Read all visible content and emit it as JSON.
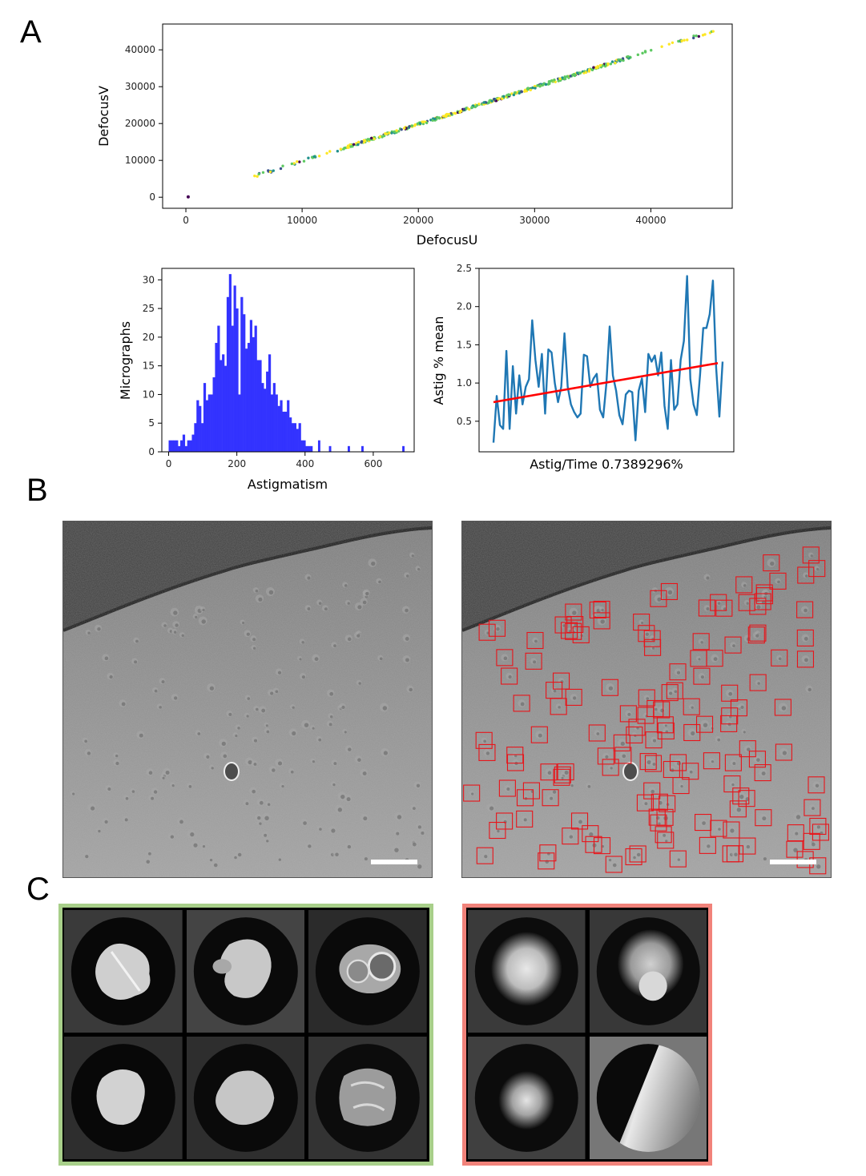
{
  "panels": {
    "a": "A",
    "b": "B",
    "c": "C"
  },
  "chart_data": [
    {
      "type": "scatter",
      "xlabel": "DefocusU",
      "ylabel": "DefocusV",
      "xlim": [
        -2000,
        47000
      ],
      "ylim": [
        -3000,
        47000
      ],
      "xticks": [
        0,
        10000,
        20000,
        30000,
        40000
      ],
      "yticks": [
        0,
        10000,
        20000,
        30000,
        40000
      ],
      "xtick_labels": [
        "0",
        "10000",
        "20000",
        "30000",
        "40000"
      ],
      "ytick_labels": [
        "0",
        "10000",
        "20000",
        "30000",
        "40000"
      ],
      "colormap": [
        "#440154",
        "#3b528b",
        "#21918c",
        "#5ec962",
        "#fde725"
      ],
      "points_range": {
        "x": [
          5200,
          45500
        ],
        "y": [
          5000,
          45300
        ]
      },
      "outlier": {
        "x": 200,
        "y": 100
      }
    },
    {
      "type": "bar",
      "xlabel": "Astigmatism",
      "ylabel": "Micrographs",
      "xlim": [
        -20,
        720
      ],
      "ylim": [
        0,
        32
      ],
      "xticks": [
        0,
        200,
        400,
        600
      ],
      "yticks": [
        0,
        5,
        10,
        15,
        20,
        25,
        30
      ],
      "xtick_labels": [
        "0",
        "200",
        "400",
        "600"
      ],
      "ytick_labels": [
        "0",
        "5",
        "10",
        "15",
        "20",
        "25",
        "30"
      ],
      "color": "#3333ff",
      "bin_width": 6.8,
      "bin_start": 0,
      "values": [
        2,
        2,
        2,
        2,
        1,
        2,
        3,
        1,
        2,
        2,
        3,
        5,
        9,
        8,
        5,
        12,
        9,
        10,
        10,
        13,
        19,
        22,
        16,
        17,
        15,
        27,
        31,
        22,
        29,
        25,
        10,
        27,
        24,
        18,
        19,
        23,
        20,
        22,
        16,
        16,
        12,
        11,
        14,
        17,
        10,
        12,
        10,
        8,
        9,
        7,
        7,
        9,
        6,
        5,
        5,
        4,
        5,
        2,
        2,
        1,
        1,
        1,
        0,
        0,
        0,
        0,
        0,
        0,
        0,
        0,
        0,
        0,
        0,
        0,
        0,
        0,
        0,
        0,
        0,
        0,
        0,
        0,
        0,
        0,
        0,
        0,
        0,
        0,
        0,
        0,
        0,
        0,
        0,
        0,
        0,
        0,
        0,
        0,
        0,
        0
      ],
      "outliers": [
        {
          "x": 438,
          "v": 2
        },
        {
          "x": 470,
          "v": 1
        },
        {
          "x": 525,
          "v": 1
        },
        {
          "x": 565,
          "v": 1
        },
        {
          "x": 685,
          "v": 1
        }
      ]
    },
    {
      "type": "line",
      "xlabel": "Astig/Time 0.7389296%",
      "ylabel": "Astig % mean",
      "ylim": [
        0.1,
        2.5
      ],
      "yticks": [
        0.5,
        1.0,
        1.5,
        2.0,
        2.5
      ],
      "ytick_labels": [
        "0.5",
        "1.0",
        "1.5",
        "2.0",
        "2.5"
      ],
      "series": [
        {
          "values": [
            0.22,
            0.83,
            0.45,
            0.4,
            1.42,
            0.4,
            1.22,
            0.6,
            1.1,
            0.72,
            0.95,
            1.05,
            1.82,
            1.3,
            0.95,
            1.38,
            0.6,
            1.44,
            1.4,
            1.0,
            0.75,
            0.95,
            1.65,
            0.95,
            0.72,
            0.62,
            0.55,
            0.6,
            1.37,
            1.35,
            0.95,
            1.06,
            1.12,
            0.65,
            0.55,
            1.0,
            1.74,
            1.1,
            0.9,
            0.58,
            0.46,
            0.85,
            0.9,
            0.88,
            0.25,
            0.9,
            1.06,
            0.62,
            1.38,
            1.28,
            1.36,
            1.1,
            1.4,
            0.7,
            0.4,
            1.3,
            0.65,
            0.72,
            1.3,
            1.55,
            2.4,
            1.05,
            0.72,
            0.58,
            1.1,
            1.72,
            1.72,
            1.9,
            2.34,
            1.2,
            0.56,
            1.28
          ],
          "color": "#1f77b4"
        },
        {
          "values": [
            0.75,
            1.26
          ],
          "color": "#ff0000"
        }
      ]
    }
  ],
  "micrographs": {
    "left": {
      "scale_bar": true
    },
    "right": {
      "scale_bar": true,
      "box_color": "#e8141a"
    }
  },
  "class_averages": {
    "good_color": "#a8cf8a",
    "bad_color": "#f1827a"
  }
}
